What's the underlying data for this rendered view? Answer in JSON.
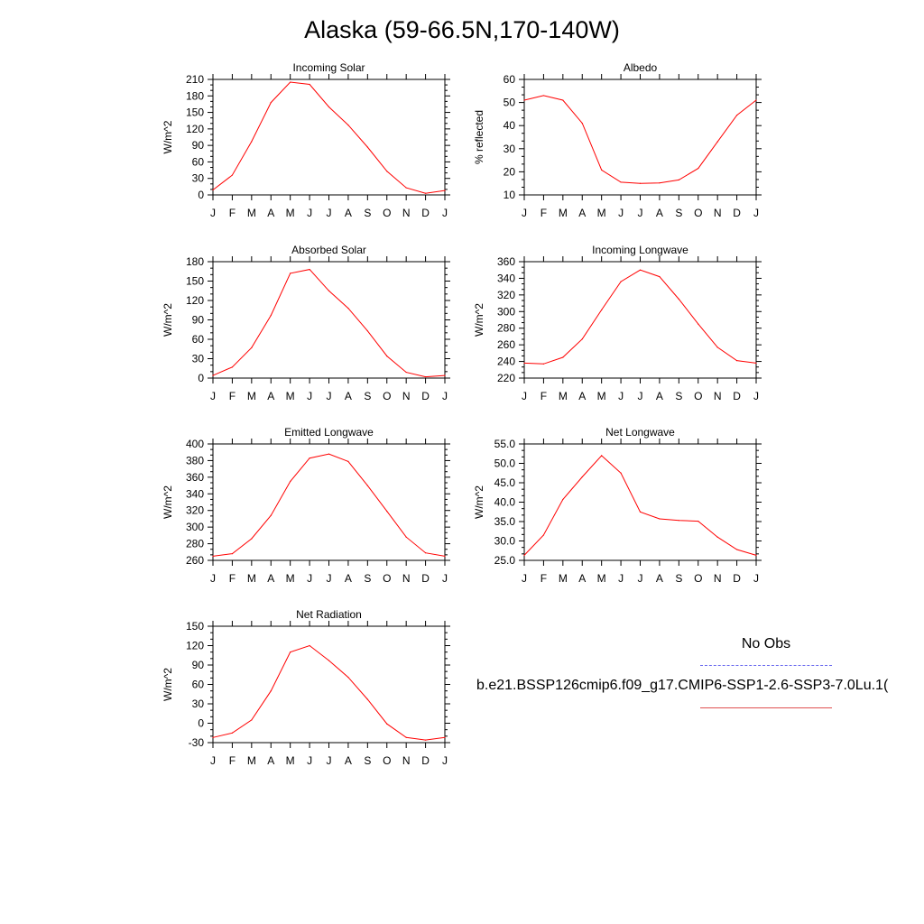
{
  "title": "Alaska (59-66.5N,170-140W)",
  "colors": {
    "model_line": "#ff0000",
    "obs_line": "#6b6bef",
    "axis": "#000000"
  },
  "legend": {
    "obs_label": "No Obs",
    "run_label": "b.e21.BSSP126cmip6.f09_g17.CMIP6-SSP1-2.6-SSP3-7.0Lu.1("
  },
  "chart_data": [
    {
      "type": "line",
      "title": "Incoming Solar",
      "ylabel": "W/m^2",
      "x": [
        "J",
        "F",
        "M",
        "A",
        "M",
        "J",
        "J",
        "A",
        "S",
        "O",
        "N",
        "D",
        "J"
      ],
      "ylim": [
        0,
        210
      ],
      "yticks": [
        0,
        30,
        60,
        90,
        120,
        150,
        180,
        210
      ],
      "ytick_labels": [
        "0",
        "30",
        "60",
        "90",
        "120",
        "150",
        "180",
        "210"
      ],
      "series": [
        {
          "values": [
            9,
            36,
            97,
            168,
            205,
            201,
            160,
            127,
            87,
            43,
            13,
            3,
            8
          ]
        }
      ]
    },
    {
      "type": "line",
      "title": "Albedo",
      "ylabel": "% reflected",
      "x": [
        "J",
        "F",
        "M",
        "A",
        "M",
        "J",
        "J",
        "A",
        "S",
        "O",
        "N",
        "D",
        "J"
      ],
      "ylim": [
        10,
        60
      ],
      "yticks": [
        10,
        20,
        30,
        40,
        50,
        60
      ],
      "ytick_labels": [
        "10",
        "20",
        "30",
        "40",
        "50",
        "60"
      ],
      "series": [
        {
          "values": [
            51,
            53,
            51,
            41,
            20.8,
            15.5,
            15,
            15.2,
            16.5,
            21.5,
            33,
            44.5,
            51
          ]
        }
      ]
    },
    {
      "type": "line",
      "title": "Absorbed Solar",
      "ylabel": "W/m^2",
      "x": [
        "J",
        "F",
        "M",
        "A",
        "M",
        "J",
        "J",
        "A",
        "S",
        "O",
        "N",
        "D",
        "J"
      ],
      "ylim": [
        0,
        180
      ],
      "yticks": [
        0,
        30,
        60,
        90,
        120,
        150,
        180
      ],
      "ytick_labels": [
        "0",
        "30",
        "60",
        "90",
        "120",
        "150",
        "180"
      ],
      "series": [
        {
          "values": [
            4,
            17,
            47,
            97,
            162,
            168,
            135,
            108,
            73,
            34,
            9,
            2,
            4
          ]
        }
      ]
    },
    {
      "type": "line",
      "title": "Incoming Longwave",
      "ylabel": "W/m^2",
      "x": [
        "J",
        "F",
        "M",
        "A",
        "M",
        "J",
        "J",
        "A",
        "S",
        "O",
        "N",
        "D",
        "J"
      ],
      "ylim": [
        220,
        360
      ],
      "yticks": [
        220,
        240,
        260,
        280,
        300,
        320,
        340,
        360
      ],
      "ytick_labels": [
        "220",
        "240",
        "260",
        "280",
        "300",
        "320",
        "340",
        "360"
      ],
      "series": [
        {
          "values": [
            238,
            237,
            245,
            267,
            302,
            336,
            350,
            342,
            315,
            285,
            257,
            241,
            238
          ]
        }
      ]
    },
    {
      "type": "line",
      "title": "Emitted Longwave",
      "ylabel": "W/m^2",
      "x": [
        "J",
        "F",
        "M",
        "A",
        "M",
        "J",
        "J",
        "A",
        "S",
        "O",
        "N",
        "D",
        "J"
      ],
      "ylim": [
        260,
        400
      ],
      "yticks": [
        260,
        280,
        300,
        320,
        340,
        360,
        380,
        400
      ],
      "ytick_labels": [
        "260",
        "280",
        "300",
        "320",
        "340",
        "360",
        "380",
        "400"
      ],
      "series": [
        {
          "values": [
            265,
            268,
            286,
            314,
            355,
            383,
            388,
            379,
            350,
            319,
            288,
            269,
            265
          ]
        }
      ]
    },
    {
      "type": "line",
      "title": "Net Longwave",
      "ylabel": "W/m^2",
      "x": [
        "J",
        "F",
        "M",
        "A",
        "M",
        "J",
        "J",
        "A",
        "S",
        "O",
        "N",
        "D",
        "J"
      ],
      "ylim": [
        25,
        55
      ],
      "yticks": [
        25,
        30,
        35,
        40,
        45,
        50,
        55
      ],
      "ytick_labels": [
        "25.0",
        "30.0",
        "35.0",
        "40.0",
        "45.0",
        "50.0",
        "55.0"
      ],
      "series": [
        {
          "values": [
            26.3,
            31.5,
            40.7,
            46.5,
            52,
            47.5,
            37.5,
            35.7,
            35.3,
            35.1,
            31,
            27.8,
            26.3
          ]
        }
      ]
    },
    {
      "type": "line",
      "title": "Net Radiation",
      "ylabel": "W/m^2",
      "x": [
        "J",
        "F",
        "M",
        "A",
        "M",
        "J",
        "J",
        "A",
        "S",
        "O",
        "N",
        "D",
        "J"
      ],
      "ylim": [
        -30,
        150
      ],
      "yticks": [
        -30,
        0,
        30,
        60,
        90,
        120,
        150
      ],
      "ytick_labels": [
        "-30",
        "0",
        "30",
        "60",
        "90",
        "120",
        "150"
      ],
      "series": [
        {
          "values": [
            -22,
            -15,
            5,
            50,
            110,
            120,
            97,
            71,
            37,
            -1,
            -22,
            -26,
            -22
          ]
        }
      ]
    }
  ]
}
